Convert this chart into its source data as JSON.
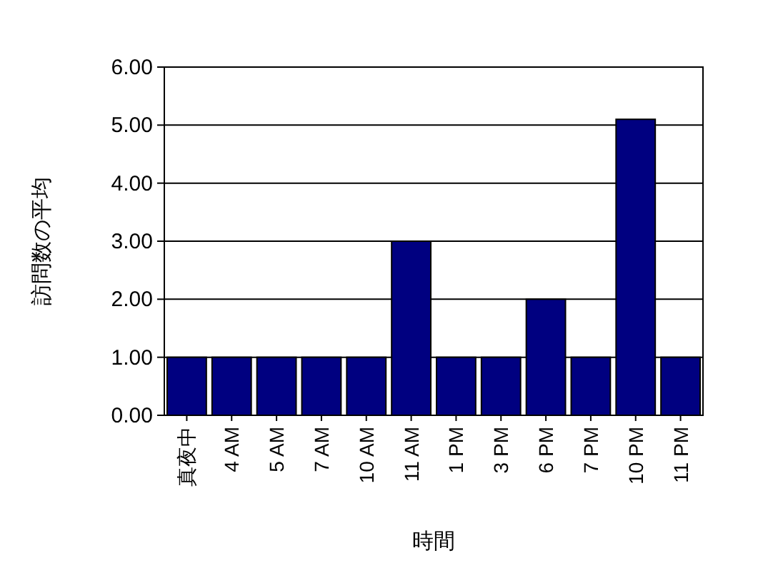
{
  "chart_data": {
    "type": "bar",
    "xlabel": "時間",
    "ylabel": "訪問数の平均",
    "categories": [
      "真夜中",
      "4 AM",
      "5 AM",
      "7 AM",
      "10 AM",
      "11 AM",
      "1 PM",
      "3 PM",
      "6 PM",
      "7 PM",
      "10 PM",
      "11 PM"
    ],
    "values": [
      1,
      1,
      1,
      1,
      1,
      3,
      1,
      1,
      2,
      1,
      5.1,
      1
    ],
    "color": "#000080",
    "ylim": [
      0,
      6
    ],
    "yticks": [
      {
        "value": 0,
        "label": "0.00"
      },
      {
        "value": 1,
        "label": "1.00"
      },
      {
        "value": 2,
        "label": "2.00"
      },
      {
        "value": 3,
        "label": "3.00"
      },
      {
        "value": 4,
        "label": "4.00"
      },
      {
        "value": 5,
        "label": "5.00"
      },
      {
        "value": 6,
        "label": "6.00"
      }
    ],
    "grid": "y"
  }
}
